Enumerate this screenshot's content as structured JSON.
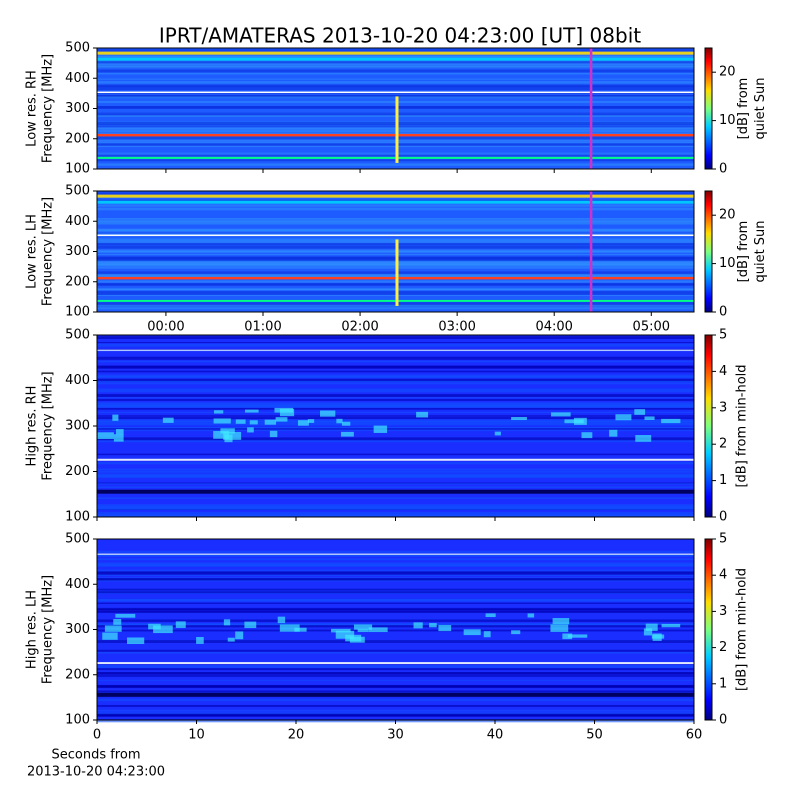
{
  "chart_data": [
    {
      "type": "spectrogram",
      "title": "IPRT/AMATERAS 2013-10-20 04:23:00 [UT]   08bit",
      "ylabel": [
        "Low res. RH",
        "Frequency [MHz]"
      ],
      "ylim": [
        100,
        500
      ],
      "yticks": [
        100,
        200,
        300,
        400,
        500
      ],
      "xlim": [
        -0.71,
        5.44
      ],
      "xticks": [
        {
          "value": 0,
          "label": "00:00"
        },
        {
          "value": 1,
          "label": "01:00"
        },
        {
          "value": 2,
          "label": "02:00"
        },
        {
          "value": 3,
          "label": "03:00"
        },
        {
          "value": 4,
          "label": "04:00"
        },
        {
          "value": 5,
          "label": "05:00"
        }
      ],
      "xticklabels": false,
      "marker_x": 4.38,
      "marker_color": "#cc33cc",
      "clabel": [
        "[dB] from",
        "quiet Sun"
      ],
      "clim": [
        0,
        25
      ],
      "cticks": [
        0,
        10,
        20
      ]
    },
    {
      "type": "spectrogram",
      "ylabel": [
        "Low res. LH",
        "Frequency [MHz]"
      ],
      "ylim": [
        100,
        500
      ],
      "yticks": [
        100,
        200,
        300,
        400,
        500
      ],
      "xlim": [
        -0.71,
        5.44
      ],
      "xticks": [
        {
          "value": 0,
          "label": "00:00"
        },
        {
          "value": 1,
          "label": "01:00"
        },
        {
          "value": 2,
          "label": "02:00"
        },
        {
          "value": 3,
          "label": "03:00"
        },
        {
          "value": 4,
          "label": "04:00"
        },
        {
          "value": 5,
          "label": "05:00"
        }
      ],
      "xticklabels": true,
      "marker_x": 4.38,
      "marker_color": "#cc33cc",
      "clabel": [
        "[dB] from",
        "quiet Sun"
      ],
      "clim": [
        0,
        25
      ],
      "cticks": [
        0,
        10,
        20
      ]
    },
    {
      "type": "spectrogram",
      "ylabel": [
        "High res. RH",
        "Frequency [MHz]"
      ],
      "ylim": [
        100,
        500
      ],
      "yticks": [
        100,
        200,
        300,
        400,
        500
      ],
      "xlim": [
        0,
        60
      ],
      "xticks": [
        0,
        10,
        20,
        30,
        40,
        50,
        60
      ],
      "xticklabels": false,
      "clabel": [
        "[dB] from min-hold"
      ],
      "clim": [
        0,
        5
      ],
      "cticks": [
        0,
        1,
        2,
        3,
        4,
        5
      ]
    },
    {
      "type": "spectrogram",
      "ylabel": [
        "High res. LH",
        "Frequency [MHz]"
      ],
      "ylim": [
        100,
        500
      ],
      "yticks": [
        100,
        200,
        300,
        400,
        500
      ],
      "xlim": [
        0,
        60
      ],
      "xticks": [
        0,
        10,
        20,
        30,
        40,
        50,
        60
      ],
      "xticklabels": true,
      "xlabel": [
        "Seconds from",
        "2013-10-20 04:23:00"
      ],
      "clabel": [
        "[dB] from min-hold"
      ],
      "clim": [
        0,
        5
      ],
      "cticks": [
        0,
        1,
        2,
        3,
        4,
        5
      ]
    }
  ]
}
